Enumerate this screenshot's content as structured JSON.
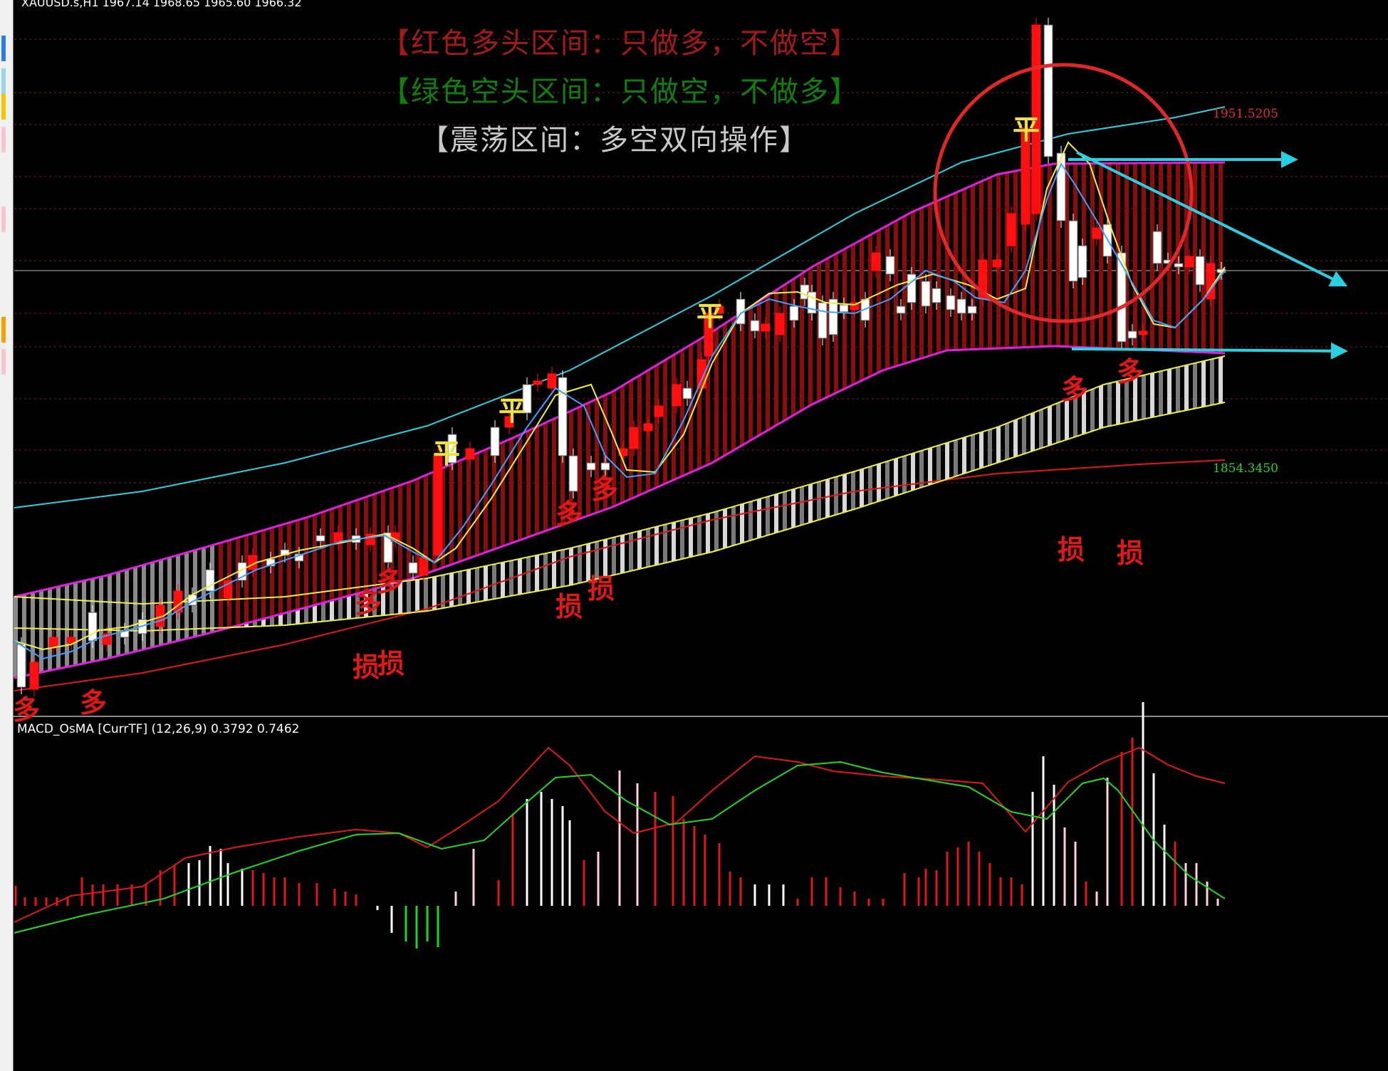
{
  "chart_header": {
    "symbol_line": "XAUUSD.s,H1 1967.14 1968.65 1965.60 1966.32"
  },
  "banners": {
    "bull": "【红色多头区间：只做多，不做空】",
    "bear": "【绿色空头区间：只做空，不做多】",
    "range": "【震荡区间：多空双向操作】"
  },
  "price_labels": {
    "upper": "1951.5205",
    "lower": "1854.3450"
  },
  "indicator": {
    "title": "MACD_OsMA [CurrTF] (12,26,9) 0.3792 0.7462"
  },
  "annotations": {
    "long_mark": "多",
    "stop_mark": "损",
    "close_mark": "平"
  },
  "colors": {
    "bull": "#e01010",
    "bear": "#18a818",
    "cyan": "#2bd0e0",
    "magenta": "#e020e0",
    "yellow": "#f0f040",
    "circle": "#e02828"
  }
}
